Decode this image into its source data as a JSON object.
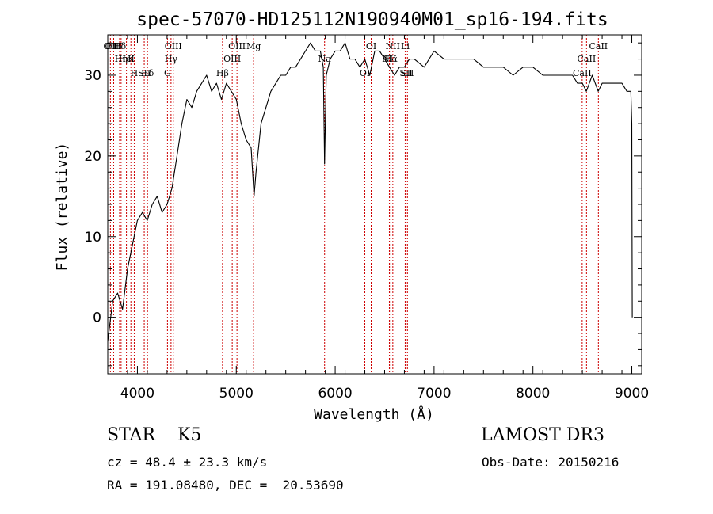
{
  "chart_data": {
    "type": "line",
    "title": "spec-57070-HD125112N190940M01_sp16-194.fits",
    "xlabel": "Wavelength (Å)",
    "ylabel": "Flux (relative)",
    "xlim": [
      3700,
      9100
    ],
    "ylim": [
      -7,
      35
    ],
    "xticks": [
      4000,
      5000,
      6000,
      7000,
      8000,
      9000
    ],
    "yticks": [
      0,
      10,
      20,
      30
    ],
    "series": [
      {
        "name": "flux",
        "x": [
          3700,
          3750,
          3800,
          3850,
          3900,
          3950,
          4000,
          4050,
          4100,
          4150,
          4200,
          4250,
          4300,
          4350,
          4400,
          4450,
          4500,
          4550,
          4600,
          4650,
          4700,
          4750,
          4800,
          4850,
          4900,
          4950,
          5000,
          5050,
          5100,
          5150,
          5180,
          5200,
          5250,
          5300,
          5350,
          5400,
          5450,
          5500,
          5550,
          5600,
          5650,
          5700,
          5750,
          5800,
          5850,
          5880,
          5893,
          5910,
          5950,
          6000,
          6050,
          6100,
          6150,
          6200,
          6250,
          6300,
          6350,
          6400,
          6450,
          6500,
          6550,
          6600,
          6650,
          6700,
          6750,
          6800,
          6900,
          7000,
          7100,
          7200,
          7300,
          7400,
          7500,
          7600,
          7700,
          7800,
          7900,
          8000,
          8100,
          8200,
          8300,
          8400,
          8450,
          8500,
          8540,
          8600,
          8660,
          8700,
          8800,
          8900,
          8950,
          8990,
          9000,
          9005
        ],
        "y": [
          -3,
          2,
          3,
          1,
          6,
          9,
          12,
          13,
          12,
          14,
          15,
          13,
          14,
          16,
          20,
          24,
          27,
          26,
          28,
          29,
          30,
          28,
          29,
          27,
          29,
          28,
          27,
          24,
          22,
          21,
          15,
          18,
          24,
          26,
          28,
          29,
          30,
          30,
          31,
          31,
          32,
          33,
          34,
          33,
          33,
          31,
          19,
          30,
          32,
          33,
          33,
          34,
          32,
          32,
          31,
          32,
          30,
          33,
          33,
          32,
          31,
          30,
          31,
          31,
          32,
          32,
          31,
          33,
          32,
          32,
          32,
          32,
          31,
          31,
          31,
          30,
          31,
          31,
          30,
          30,
          30,
          30,
          29,
          29,
          28,
          30,
          28,
          29,
          29,
          29,
          28,
          28,
          24,
          0
        ]
      }
    ],
    "lines": [
      {
        "label": "Hδ",
        "x": 3820
      },
      {
        "label": "K",
        "x": 3934
      },
      {
        "label": "Hδ",
        "x": 4102
      },
      {
        "label": "OII",
        "x": 3727
      },
      {
        "label": "HeI",
        "x": 3889
      },
      {
        "label": "SII",
        "x": 4069
      },
      {
        "label": "OIII",
        "x": 3760
      },
      {
        "label": "Hη",
        "x": 3835
      },
      {
        "label": "H",
        "x": 3968
      },
      {
        "label": "OIII",
        "x": 4363
      },
      {
        "label": "Hγ",
        "x": 4340
      },
      {
        "label": "G",
        "x": 4304
      },
      {
        "label": "OIII",
        "x": 5007
      },
      {
        "label": "OIII",
        "x": 4959
      },
      {
        "label": "Hβ",
        "x": 4861
      },
      {
        "label": "Mg",
        "x": 5175
      },
      {
        "label": "Na",
        "x": 5893
      },
      {
        "label": "OI",
        "x": 6300
      },
      {
        "label": "OI",
        "x": 6364
      },
      {
        "label": "Hα",
        "x": 6563
      },
      {
        "label": "SII",
        "x": 6717
      },
      {
        "label": "NII",
        "x": 6583
      },
      {
        "label": "NII",
        "x": 6548
      },
      {
        "label": "SII",
        "x": 6731
      },
      {
        "label": "Li",
        "x": 6708
      },
      {
        "label": "CaII",
        "x": 8542
      },
      {
        "label": "CaII",
        "x": 8498
      },
      {
        "label": "CaII",
        "x": 8662
      }
    ]
  },
  "meta": {
    "sptype": "STAR    K5",
    "survey": "LAMOST DR3",
    "cz": "cz = 48.4 ± 23.3 km/s",
    "obs_date": "Obs-Date: 20150216",
    "radec": "RA = 191.08480, DEC =  20.53690"
  }
}
